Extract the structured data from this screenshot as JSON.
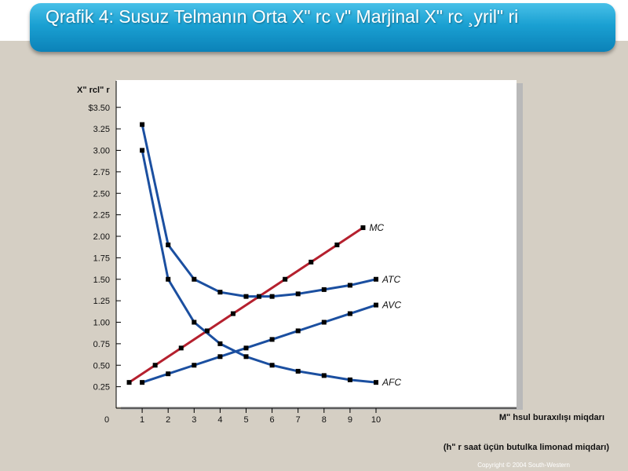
{
  "slide": {
    "title": "Qrafik 4: Susuz Telmanın Orta Xʺ rc vʺ  Marjinal Xʺ rc ¸yrilʺ ri",
    "copyright": "Copyright © 2004  South-Western"
  },
  "chart_data": {
    "type": "line",
    "ylabel": "Xʺ rclʺ r",
    "xlabel": "Mʺ hsul buraxılışı miqdarı",
    "xlabel_sub": "(hʺ r saat üçün butulka limonad miqdarı)",
    "xlim": [
      0,
      10
    ],
    "ylim": [
      0,
      3.5
    ],
    "x_ticks": [
      "0",
      "1",
      "2",
      "3",
      "4",
      "5",
      "6",
      "7",
      "8",
      "9",
      "10"
    ],
    "y_ticks": [
      {
        "v": 0.25,
        "label": "0.25"
      },
      {
        "v": 0.5,
        "label": "0.50"
      },
      {
        "v": 0.75,
        "label": "0.75"
      },
      {
        "v": 1.0,
        "label": "1.00"
      },
      {
        "v": 1.25,
        "label": "1.25"
      },
      {
        "v": 1.5,
        "label": "1.50"
      },
      {
        "v": 1.75,
        "label": "1.75"
      },
      {
        "v": 2.0,
        "label": "2.00"
      },
      {
        "v": 2.25,
        "label": "2.25"
      },
      {
        "v": 2.5,
        "label": "2.50"
      },
      {
        "v": 2.75,
        "label": "2.75"
      },
      {
        "v": 3.0,
        "label": "3.00"
      },
      {
        "v": 3.25,
        "label": "3.25"
      },
      {
        "v": 3.5,
        "label": "$3.50"
      }
    ],
    "series": [
      {
        "name": "MC",
        "color": "#b5202e",
        "x": [
          0.5,
          1.5,
          2.5,
          3.5,
          4.5,
          5.5,
          6.5,
          7.5,
          8.5,
          9.5
        ],
        "y": [
          0.3,
          0.5,
          0.7,
          0.9,
          1.1,
          1.3,
          1.5,
          1.7,
          1.9,
          2.1
        ]
      },
      {
        "name": "ATC",
        "color": "#1b4fa0",
        "x": [
          1,
          2,
          3,
          4,
          5,
          6,
          7,
          8,
          9,
          10
        ],
        "y": [
          3.3,
          1.9,
          1.5,
          1.35,
          1.3,
          1.3,
          1.33,
          1.38,
          1.43,
          1.5
        ]
      },
      {
        "name": "AVC",
        "color": "#1b4fa0",
        "x": [
          1,
          2,
          3,
          4,
          5,
          6,
          7,
          8,
          9,
          10
        ],
        "y": [
          0.3,
          0.4,
          0.5,
          0.6,
          0.7,
          0.8,
          0.9,
          1.0,
          1.1,
          1.2
        ]
      },
      {
        "name": "AFC",
        "color": "#1b4fa0",
        "x": [
          1,
          2,
          3,
          4,
          5,
          6,
          7,
          8,
          9,
          10
        ],
        "y": [
          3.0,
          1.5,
          1.0,
          0.75,
          0.6,
          0.5,
          0.43,
          0.38,
          0.33,
          0.3
        ]
      }
    ]
  }
}
